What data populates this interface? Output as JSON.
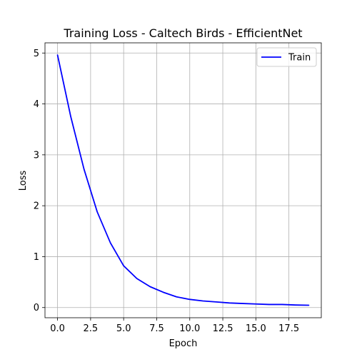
{
  "chart_data": {
    "type": "line",
    "title": "Training Loss - Caltech Birds - EfficientNet",
    "xlabel": "Epoch",
    "ylabel": "Loss",
    "xlim": [
      -0.95,
      19.95
    ],
    "ylim": [
      -0.2,
      5.2
    ],
    "xticks": [
      0.0,
      2.5,
      5.0,
      7.5,
      10.0,
      12.5,
      15.0,
      17.5
    ],
    "xtick_labels": [
      "0.0",
      "2.5",
      "5.0",
      "7.5",
      "10.0",
      "12.5",
      "15.0",
      "17.5"
    ],
    "yticks": [
      0,
      1,
      2,
      3,
      4,
      5
    ],
    "ytick_labels": [
      "0",
      "1",
      "2",
      "3",
      "4",
      "5"
    ],
    "grid": true,
    "legend": {
      "position": "top-right",
      "entries": [
        "Train"
      ]
    },
    "series": [
      {
        "name": "Train",
        "color": "#0000ff",
        "x": [
          0,
          1,
          2,
          3,
          4,
          5,
          6,
          7,
          8,
          9,
          10,
          11,
          12,
          13,
          14,
          15,
          16,
          17,
          18,
          19
        ],
        "y": [
          4.96,
          3.75,
          2.72,
          1.88,
          1.27,
          0.82,
          0.57,
          0.41,
          0.3,
          0.21,
          0.16,
          0.13,
          0.11,
          0.09,
          0.08,
          0.07,
          0.06,
          0.06,
          0.05,
          0.045
        ]
      }
    ]
  }
}
